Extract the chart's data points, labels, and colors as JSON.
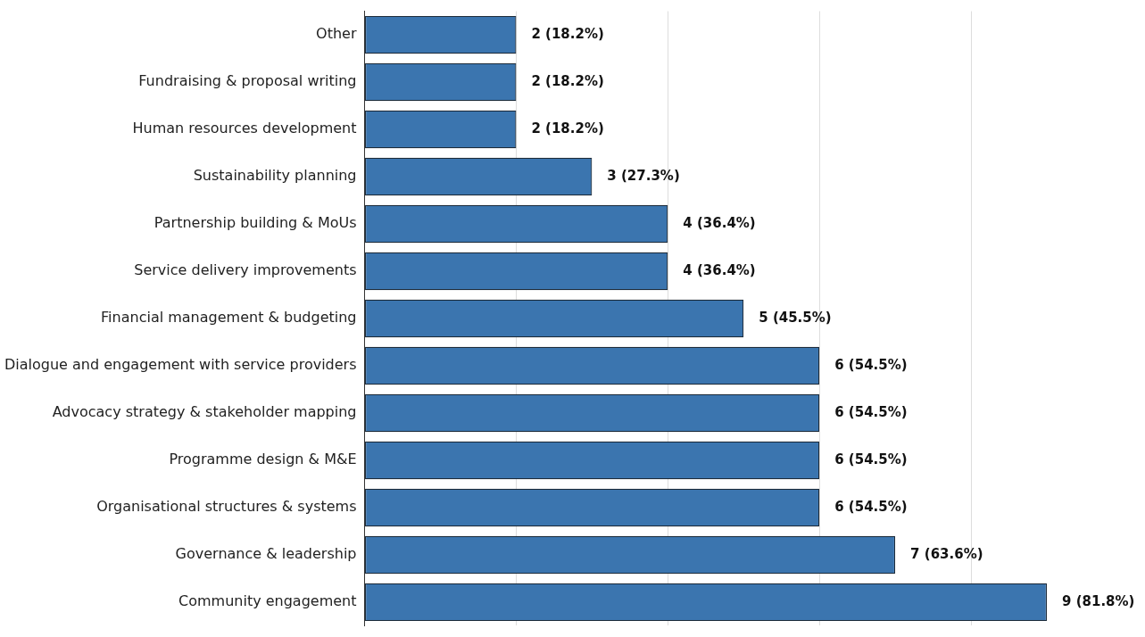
{
  "chart_data": {
    "type": "bar",
    "orientation": "horizontal",
    "categories": [
      "Other",
      "Fundraising & proposal writing",
      "Human resources development",
      "Sustainability planning",
      "Partnership building & MoUs",
      "Service delivery improvements",
      "Financial management & budgeting",
      "Dialogue and engagement with service providers",
      "Advocacy strategy & stakeholder mapping",
      "Programme design & M&E",
      "Organisational structures & systems",
      "Governance & leadership",
      "Community engagement"
    ],
    "values": [
      2,
      2,
      2,
      3,
      4,
      4,
      5,
      6,
      6,
      6,
      6,
      7,
      9
    ],
    "value_labels": [
      "2 (18.2%)",
      "2 (18.2%)",
      "2 (18.2%)",
      "3 (27.3%)",
      "4 (36.4%)",
      "4 (36.4%)",
      "5 (45.5%)",
      "6 (54.5%)",
      "6 (54.5%)",
      "6 (54.5%)",
      "6 (54.5%)",
      "7 (63.6%)",
      "9 (81.8%)"
    ],
    "color": "#3b75af",
    "xticks": [
      {
        "value": 0,
        "label": null
      },
      {
        "value": 2,
        "label": null
      },
      {
        "value": 4,
        "label": null
      },
      {
        "value": 6,
        "label": null
      },
      {
        "value": 8,
        "label": null
      }
    ],
    "grid": "x",
    "tick_labels": "y",
    "legend": false
  }
}
